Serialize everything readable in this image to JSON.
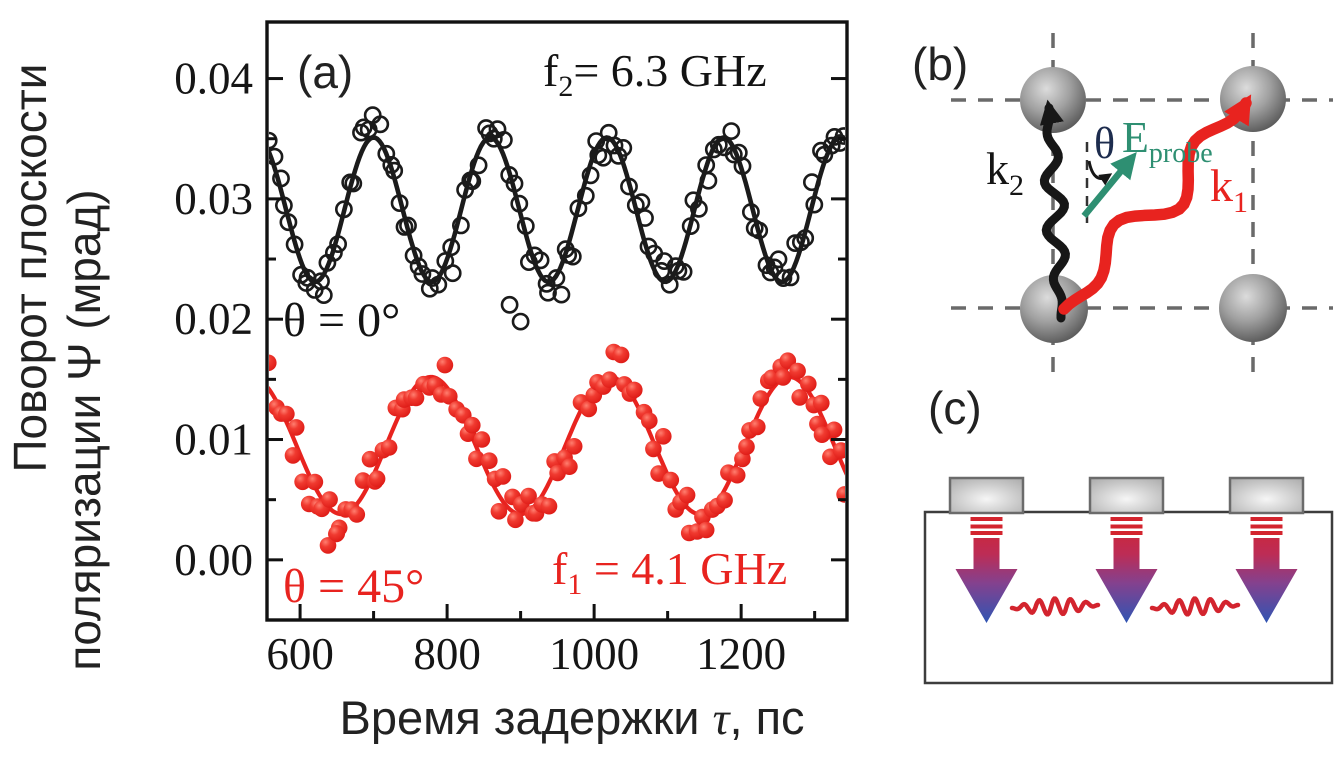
{
  "colors": {
    "black": "#1b1b1b",
    "red": "#e8231f",
    "teal": "#2e8f72",
    "theta_navy": "#1d2c4e",
    "grid_gray": "#6a6a6a",
    "pulse_red": "#d3242e",
    "arrow_blue": "#2d55b4",
    "axis": "#111111"
  },
  "panels": {
    "a": {
      "label": "(a)"
    },
    "b": {
      "label": "(b)"
    },
    "c": {
      "label": "(c)"
    }
  },
  "chart_data": {
    "type": "scatter",
    "title": "",
    "xlabel_parts": [
      "Время задержки ",
      "τ",
      ", пс"
    ],
    "ylabel_lines": [
      "Поворот плоскости",
      "поляризации Ψ (мрад)"
    ],
    "xlim": [
      555,
      1344
    ],
    "ylim": [
      -0.005,
      0.0447
    ],
    "x_major_ticks": [
      600,
      800,
      1000,
      1200
    ],
    "x_minor_ticks": [
      700,
      900,
      1100,
      1300
    ],
    "y_major_ticks": [
      {
        "v": 0.0,
        "label": "0.00"
      },
      {
        "v": 0.01,
        "label": "0.01"
      },
      {
        "v": 0.02,
        "label": "0.02"
      },
      {
        "v": 0.03,
        "label": "0.03"
      },
      {
        "v": 0.04,
        "label": "0.04"
      }
    ],
    "y_minor_ticks": [
      0.005,
      0.015,
      0.025,
      0.035
    ],
    "grid": false,
    "series": [
      {
        "id": "theta-0",
        "legend": "θ = 0°",
        "frequency_label_parts": [
          "f",
          "2",
          "= 6.3 GHz"
        ],
        "frequency_GHz": 6.3,
        "period_ps": 158.7,
        "mean_mrad": 0.0291,
        "amplitude_mrad": 0.006,
        "peaks_ps": [
          700,
          859,
          1017,
          1176,
          1335
        ],
        "troughs_ps": [
          621,
          779,
          938,
          1096,
          1255
        ],
        "marker": "open-circle",
        "color": "#1b1b1b",
        "n_points": 116,
        "noise_sd_mrad": 0.0011,
        "seed": 7,
        "outliers": [
          [
            885,
            0.0212
          ],
          [
            900,
            0.0198
          ]
        ]
      },
      {
        "id": "theta-45",
        "legend": "θ = 45°",
        "frequency_label_parts": [
          "f",
          "1",
          " = 4.1 GHz"
        ],
        "frequency_GHz": 4.1,
        "period_ps": 243.9,
        "mean_mrad": 0.0095,
        "amplitude_mrad": 0.0057,
        "peaks_ps": [
          778,
          1022,
          1266
        ],
        "troughs_ps": [
          656,
          900,
          1144
        ],
        "marker": "filled-ball",
        "color": "#e8231f",
        "n_points": 106,
        "noise_sd_mrad": 0.0014,
        "seed": 3,
        "outliers": [
          [
            638,
            0.0012
          ],
          [
            650,
            0.0022
          ],
          [
            1310,
            0.0104
          ]
        ]
      }
    ]
  },
  "panel_b": {
    "k2_parts": [
      "k",
      "2"
    ],
    "k1_parts": [
      "k",
      "1"
    ],
    "theta_label": "θ",
    "e_probe_parts": [
      "E",
      "probe"
    ]
  },
  "panel_c": {}
}
